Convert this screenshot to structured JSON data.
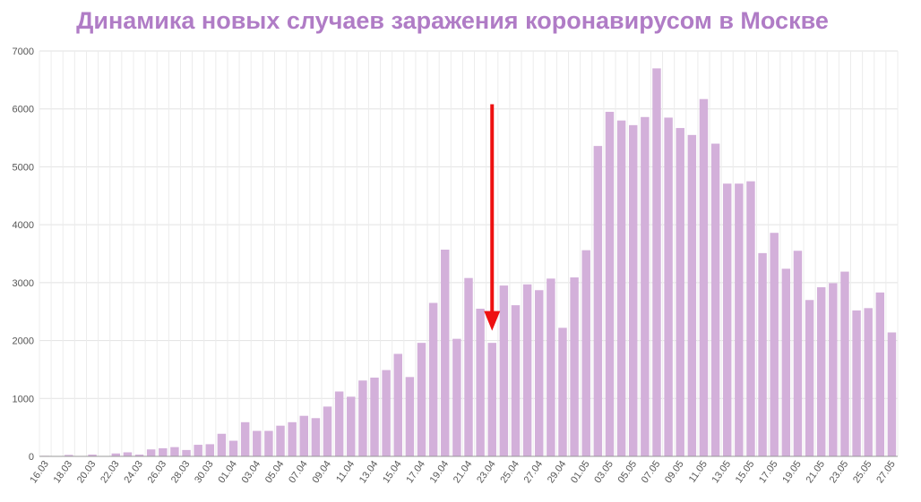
{
  "chart_data": {
    "type": "bar",
    "title": "Динамика новых случаев заражения коронавирусом в Москве",
    "xlabel": "",
    "ylabel": "",
    "ylim": [
      0,
      7000
    ],
    "yticks": [
      0,
      1000,
      2000,
      3000,
      4000,
      5000,
      6000,
      7000
    ],
    "grid": true,
    "legend": "none",
    "bar_color": "#d3b0da",
    "title_color": "#b07cc6",
    "arrow_color": "#ee1111",
    "arrow_annotation": {
      "from": [
        23.04,
        6080
      ],
      "to": [
        23.04,
        2200
      ]
    },
    "categories": [
      "16.03",
      "17.03",
      "18.03",
      "19.03",
      "20.03",
      "21.03",
      "22.03",
      "23.03",
      "24.03",
      "25.03",
      "26.03",
      "27.03",
      "28.03",
      "29.03",
      "30.03",
      "31.03",
      "01.04",
      "02.04",
      "03.04",
      "04.04",
      "05.04",
      "06.04",
      "07.04",
      "08.04",
      "09.04",
      "10.04",
      "11.04",
      "12.04",
      "13.04",
      "14.04",
      "15.04",
      "16.04",
      "17.04",
      "18.04",
      "19.04",
      "20.04",
      "21.04",
      "22.04",
      "23.04",
      "24.04",
      "25.04",
      "26.04",
      "27.04",
      "28.04",
      "29.04",
      "30.04",
      "01.05",
      "02.05",
      "03.05",
      "04.05",
      "05.05",
      "06.05",
      "07.05",
      "08.05",
      "09.05",
      "10.05",
      "11.05",
      "12.05",
      "13.05",
      "14.05",
      "15.05",
      "16.05",
      "17.05",
      "18.05",
      "19.05",
      "20.05",
      "21.05",
      "22.05",
      "23.05",
      "24.05",
      "25.05",
      "26.05",
      "27.05"
    ],
    "xtick_labels": [
      "16.03",
      "18.03",
      "20.03",
      "22.03",
      "24.03",
      "26.03",
      "28.03",
      "30.03",
      "01.04",
      "03.04",
      "05.04",
      "07.04",
      "09.04",
      "11.04",
      "13.04",
      "15.04",
      "17.04",
      "19.04",
      "21.04",
      "23.04",
      "25.04",
      "27.04",
      "29.04",
      "01.05",
      "03.05",
      "05.05",
      "07.05",
      "09.05",
      "11.05",
      "13.05",
      "15.05",
      "17.05",
      "19.05",
      "21.05",
      "23.05",
      "25.05",
      "27.05"
    ],
    "values": [
      10,
      0,
      25,
      0,
      30,
      0,
      50,
      70,
      30,
      120,
      140,
      160,
      110,
      200,
      210,
      390,
      270,
      590,
      440,
      440,
      530,
      590,
      700,
      660,
      860,
      1120,
      1030,
      1310,
      1360,
      1490,
      1770,
      1370,
      1960,
      2650,
      3570,
      2030,
      3080,
      2550,
      1960,
      2950,
      2610,
      2970,
      2870,
      3070,
      2220,
      3090,
      3560,
      5360,
      5950,
      5800,
      5720,
      5860,
      6700,
      5850,
      5670,
      5550,
      6170,
      5400,
      4710,
      4710,
      4750,
      3510,
      3860,
      3240,
      3550,
      2700,
      2920,
      2990,
      3190,
      2520,
      2560,
      2830,
      2140
    ]
  }
}
